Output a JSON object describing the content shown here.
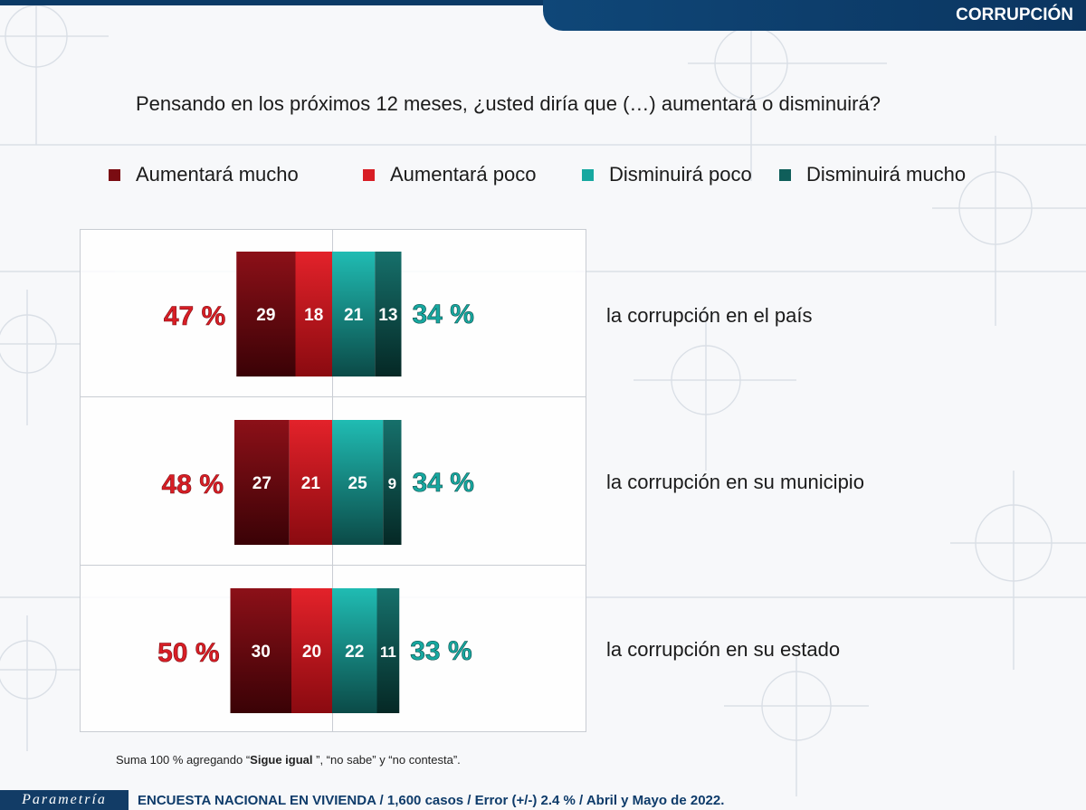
{
  "header": {
    "section_title": "CORRUPCIÓN"
  },
  "question": "Pensando en los próximos 12 meses, ¿usted diría que (…) aumentará o disminuirá?",
  "legend": [
    {
      "label": "Aumentará mucho",
      "color": "#7a0c12"
    },
    {
      "label": "Aumentará poco",
      "color": "#d81e25"
    },
    {
      "label": "Disminuirá poco",
      "color": "#17a8a0"
    },
    {
      "label": "Disminuirá mucho",
      "color": "#0f5e5a"
    }
  ],
  "chart_data": {
    "type": "bar",
    "orientation": "horizontal-diverging-stacked",
    "categories": [
      "la corrupción en el país",
      "la corrupción en su municipio",
      "la corrupción en su estado"
    ],
    "series": [
      {
        "name": "Aumentará mucho",
        "values": [
          29,
          27,
          30
        ]
      },
      {
        "name": "Aumentará poco",
        "values": [
          18,
          21,
          20
        ]
      },
      {
        "name": "Disminuirá poco",
        "values": [
          21,
          25,
          22
        ]
      },
      {
        "name": "Disminuirá mucho",
        "values": [
          13,
          9,
          11
        ]
      }
    ],
    "totals_increase": [
      "47 %",
      "48 %",
      "50 %"
    ],
    "totals_decrease": [
      "34 %",
      "34 %",
      "33 %"
    ],
    "colors": {
      "increase_total": "#d81e25",
      "decrease_total": "#17a8a0"
    }
  },
  "footnote": {
    "before": "Suma 100 %  agregando “",
    "bold": "Sigue igual",
    "after": " ”, “no sabe” y “no contesta”."
  },
  "footer": {
    "brand": "Parametría",
    "survey_info": "ENCUESTA NACIONAL EN VIVIENDA / 1,600 casos / Error (+/-) 2.4 % / Abril y Mayo de 2022."
  }
}
